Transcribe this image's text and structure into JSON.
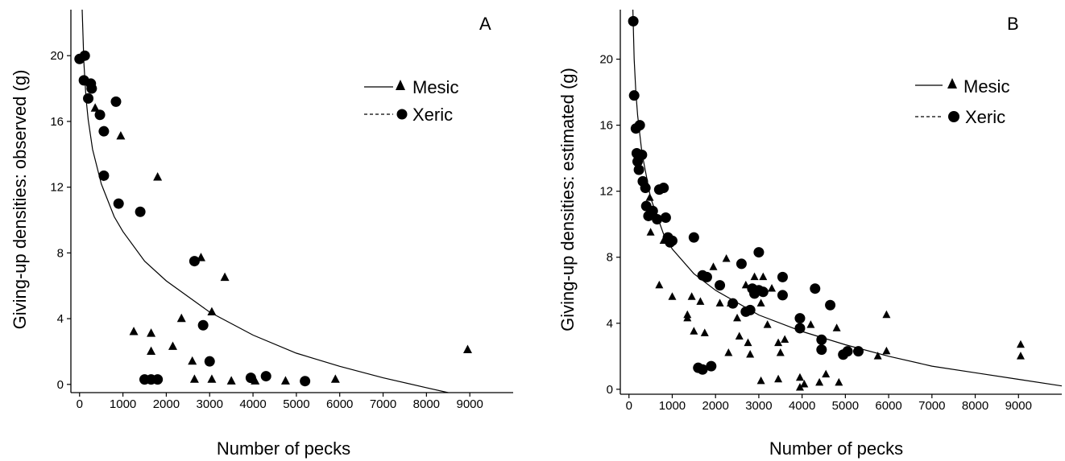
{
  "chart_data": [
    {
      "type": "scatter",
      "panel_label": "A",
      "xlabel": "Number of pecks",
      "ylabel": "Giving-up densities: observed (g)",
      "xlim": [
        -200,
        10000
      ],
      "ylim": [
        -0.5,
        22.8
      ],
      "x_ticks": [
        0,
        1000,
        2000,
        3000,
        4000,
        5000,
        6000,
        7000,
        8000,
        9000
      ],
      "y_ticks": [
        0,
        4,
        8,
        12,
        16,
        20
      ],
      "legend": {
        "position": "top-right",
        "items": [
          {
            "label": "Mesic",
            "marker": "triangle",
            "line": "solid"
          },
          {
            "label": "Xeric",
            "marker": "circle",
            "line": "dashed"
          }
        ]
      },
      "series": [
        {
          "name": "Mesic",
          "marker": "triangle",
          "points": [
            [
              360,
              16.8
            ],
            [
              950,
              15.1
            ],
            [
              1800,
              12.6
            ],
            [
              2800,
              7.7
            ],
            [
              3350,
              6.5
            ],
            [
              3050,
              4.4
            ],
            [
              1250,
              3.2
            ],
            [
              1650,
              3.1
            ],
            [
              2350,
              4.0
            ],
            [
              2150,
              2.3
            ],
            [
              1650,
              2.0
            ],
            [
              2600,
              1.4
            ],
            [
              2650,
              0.3
            ],
            [
              3050,
              0.3
            ],
            [
              3500,
              0.2
            ],
            [
              4050,
              0.2
            ],
            [
              4750,
              0.2
            ],
            [
              5900,
              0.3
            ],
            [
              8950,
              2.1
            ]
          ]
        },
        {
          "name": "Xeric",
          "marker": "circle",
          "points": [
            [
              0,
              19.8
            ],
            [
              120,
              20.0
            ],
            [
              100,
              18.5
            ],
            [
              260,
              18.3
            ],
            [
              280,
              18.0
            ],
            [
              200,
              17.4
            ],
            [
              840,
              17.2
            ],
            [
              470,
              16.4
            ],
            [
              560,
              15.4
            ],
            [
              560,
              12.7
            ],
            [
              900,
              11.0
            ],
            [
              1400,
              10.5
            ],
            [
              2650,
              7.5
            ],
            [
              2850,
              3.6
            ],
            [
              3000,
              1.4
            ],
            [
              1500,
              0.3
            ],
            [
              1650,
              0.3
            ],
            [
              1800,
              0.3
            ],
            [
              3950,
              0.4
            ],
            [
              4300,
              0.5
            ],
            [
              5200,
              0.2
            ]
          ]
        }
      ],
      "fit": {
        "series": "Mesic",
        "style": "solid",
        "points": [
          [
            60,
            22.8
          ],
          [
            100,
            19.6
          ],
          [
            150,
            17.4
          ],
          [
            200,
            16.1
          ],
          [
            300,
            14.3
          ],
          [
            500,
            12.2
          ],
          [
            800,
            10.2
          ],
          [
            1000,
            9.3
          ],
          [
            1500,
            7.5
          ],
          [
            2000,
            6.3
          ],
          [
            3000,
            4.4
          ],
          [
            4000,
            3.0
          ],
          [
            5000,
            1.9
          ],
          [
            6000,
            1.1
          ],
          [
            7000,
            0.4
          ],
          [
            8000,
            -0.2
          ],
          [
            8500,
            -0.5
          ]
        ]
      }
    },
    {
      "type": "scatter",
      "panel_label": "B",
      "xlabel": "Number of pecks",
      "ylabel": "Giving-up densities: estimated (g)",
      "xlim": [
        -200,
        10000
      ],
      "ylim": [
        -0.3,
        23.0
      ],
      "x_ticks": [
        0,
        1000,
        2000,
        3000,
        4000,
        5000,
        6000,
        7000,
        8000,
        9000
      ],
      "y_ticks": [
        0,
        4,
        8,
        12,
        16,
        20
      ],
      "legend": {
        "position": "top-right",
        "items": [
          {
            "label": "Mesic",
            "marker": "triangle",
            "line": "solid"
          },
          {
            "label": "Xeric",
            "marker": "circle",
            "line": "dashed"
          }
        ]
      },
      "series": [
        {
          "name": "Mesic",
          "marker": "triangle",
          "points": [
            [
              480,
              11.6
            ],
            [
              560,
              10.9
            ],
            [
              500,
              9.5
            ],
            [
              700,
              6.3
            ],
            [
              800,
              9.0
            ],
            [
              1000,
              5.6
            ],
            [
              1350,
              4.5
            ],
            [
              1450,
              5.6
            ],
            [
              1350,
              4.3
            ],
            [
              1500,
              3.5
            ],
            [
              1650,
              5.3
            ],
            [
              1750,
              3.4
            ],
            [
              1950,
              7.4
            ],
            [
              2100,
              5.2
            ],
            [
              2250,
              7.9
            ],
            [
              2300,
              2.2
            ],
            [
              2350,
              5.2
            ],
            [
              2500,
              4.3
            ],
            [
              2550,
              3.2
            ],
            [
              2700,
              6.3
            ],
            [
              2750,
              2.8
            ],
            [
              2800,
              2.1
            ],
            [
              2900,
              6.8
            ],
            [
              3050,
              5.2
            ],
            [
              3100,
              6.8
            ],
            [
              3200,
              3.9
            ],
            [
              3300,
              6.1
            ],
            [
              3450,
              2.8
            ],
            [
              3500,
              2.2
            ],
            [
              3600,
              3.0
            ],
            [
              3050,
              0.5
            ],
            [
              3450,
              0.6
            ],
            [
              3950,
              0.7
            ],
            [
              3950,
              0.1
            ],
            [
              4050,
              0.3
            ],
            [
              4200,
              3.9
            ],
            [
              4400,
              0.4
            ],
            [
              4550,
              0.9
            ],
            [
              4800,
              3.7
            ],
            [
              4850,
              0.4
            ],
            [
              5750,
              2.0
            ],
            [
              5950,
              4.5
            ],
            [
              5950,
              2.3
            ],
            [
              9050,
              2.7
            ],
            [
              9050,
              2.0
            ]
          ]
        },
        {
          "name": "Xeric",
          "marker": "circle",
          "points": [
            [
              100,
              22.3
            ],
            [
              120,
              17.8
            ],
            [
              160,
              15.8
            ],
            [
              250,
              16.0
            ],
            [
              180,
              14.3
            ],
            [
              300,
              14.2
            ],
            [
              200,
              13.8
            ],
            [
              230,
              13.3
            ],
            [
              320,
              12.6
            ],
            [
              380,
              12.2
            ],
            [
              400,
              11.1
            ],
            [
              450,
              10.5
            ],
            [
              550,
              10.8
            ],
            [
              650,
              10.3
            ],
            [
              700,
              12.1
            ],
            [
              800,
              12.2
            ],
            [
              850,
              10.4
            ],
            [
              900,
              9.2
            ],
            [
              950,
              8.9
            ],
            [
              1000,
              9.0
            ],
            [
              1500,
              9.2
            ],
            [
              1700,
              6.9
            ],
            [
              1800,
              6.8
            ],
            [
              1600,
              1.3
            ],
            [
              1700,
              1.2
            ],
            [
              1900,
              1.4
            ],
            [
              2100,
              6.3
            ],
            [
              2400,
              5.2
            ],
            [
              2600,
              7.6
            ],
            [
              2700,
              4.7
            ],
            [
              2800,
              4.8
            ],
            [
              2850,
              6.1
            ],
            [
              2900,
              5.8
            ],
            [
              3000,
              8.3
            ],
            [
              3000,
              6.0
            ],
            [
              3100,
              5.9
            ],
            [
              3550,
              6.8
            ],
            [
              3550,
              5.7
            ],
            [
              4300,
              6.1
            ],
            [
              3950,
              4.3
            ],
            [
              3950,
              3.7
            ],
            [
              4450,
              3.0
            ],
            [
              4450,
              2.4
            ],
            [
              4650,
              5.1
            ],
            [
              4950,
              2.1
            ],
            [
              5050,
              2.3
            ],
            [
              5300,
              2.3
            ]
          ]
        }
      ],
      "fit": {
        "series": "Mesic",
        "style": "solid",
        "points": [
          [
            90,
            23.0
          ],
          [
            120,
            20.0
          ],
          [
            160,
            18.0
          ],
          [
            200,
            16.6
          ],
          [
            300,
            14.3
          ],
          [
            500,
            11.6
          ],
          [
            800,
            9.4
          ],
          [
            1000,
            8.5
          ],
          [
            1500,
            7.0
          ],
          [
            2000,
            6.0
          ],
          [
            3000,
            4.5
          ],
          [
            4000,
            3.5
          ],
          [
            5000,
            2.7
          ],
          [
            6000,
            2.0
          ],
          [
            7000,
            1.4
          ],
          [
            8000,
            1.0
          ],
          [
            9000,
            0.6
          ],
          [
            10000,
            0.2
          ]
        ]
      }
    }
  ]
}
